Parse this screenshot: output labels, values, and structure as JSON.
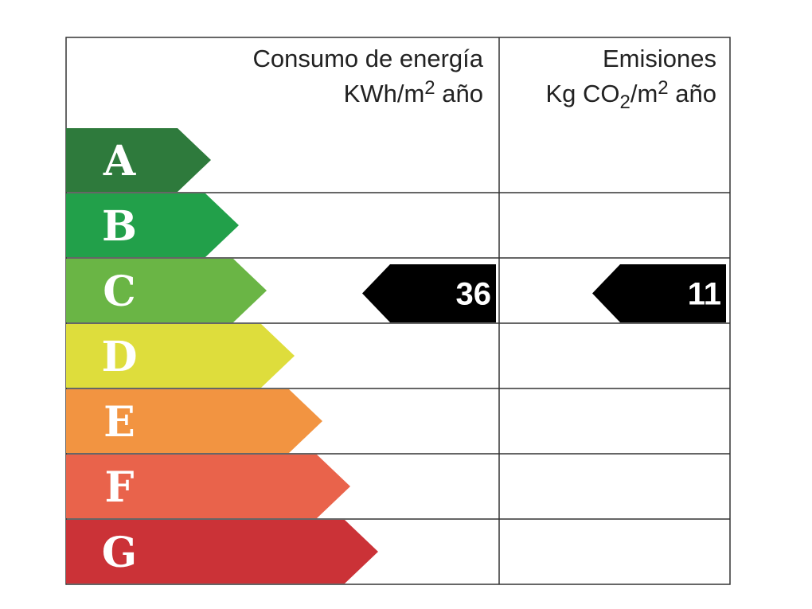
{
  "header": {
    "consumption": {
      "line1": "Consumo de energía",
      "line2": [
        {
          "text": "KWh/m"
        },
        {
          "text": "2",
          "shift": "sup"
        },
        {
          "text": " año"
        }
      ]
    },
    "emissions": {
      "line1": "Emisiones",
      "line2": [
        {
          "text": "Kg CO"
        },
        {
          "text": "2",
          "shift": "sub"
        },
        {
          "text": "/m"
        },
        {
          "text": "2",
          "shift": "sup"
        },
        {
          "text": " año"
        }
      ]
    }
  },
  "classes": [
    {
      "letter": "A",
      "color": "#2e7a3c"
    },
    {
      "letter": "B",
      "color": "#22a04a"
    },
    {
      "letter": "C",
      "color": "#6ab545"
    },
    {
      "letter": "D",
      "color": "#dedd3c"
    },
    {
      "letter": "E",
      "color": "#f29441"
    },
    {
      "letter": "F",
      "color": "#e9634b"
    },
    {
      "letter": "G",
      "color": "#cb3237"
    }
  ],
  "consumption_rating": {
    "class": "C",
    "value": 36
  },
  "emissions_rating": {
    "class": "C",
    "value": 11
  }
}
